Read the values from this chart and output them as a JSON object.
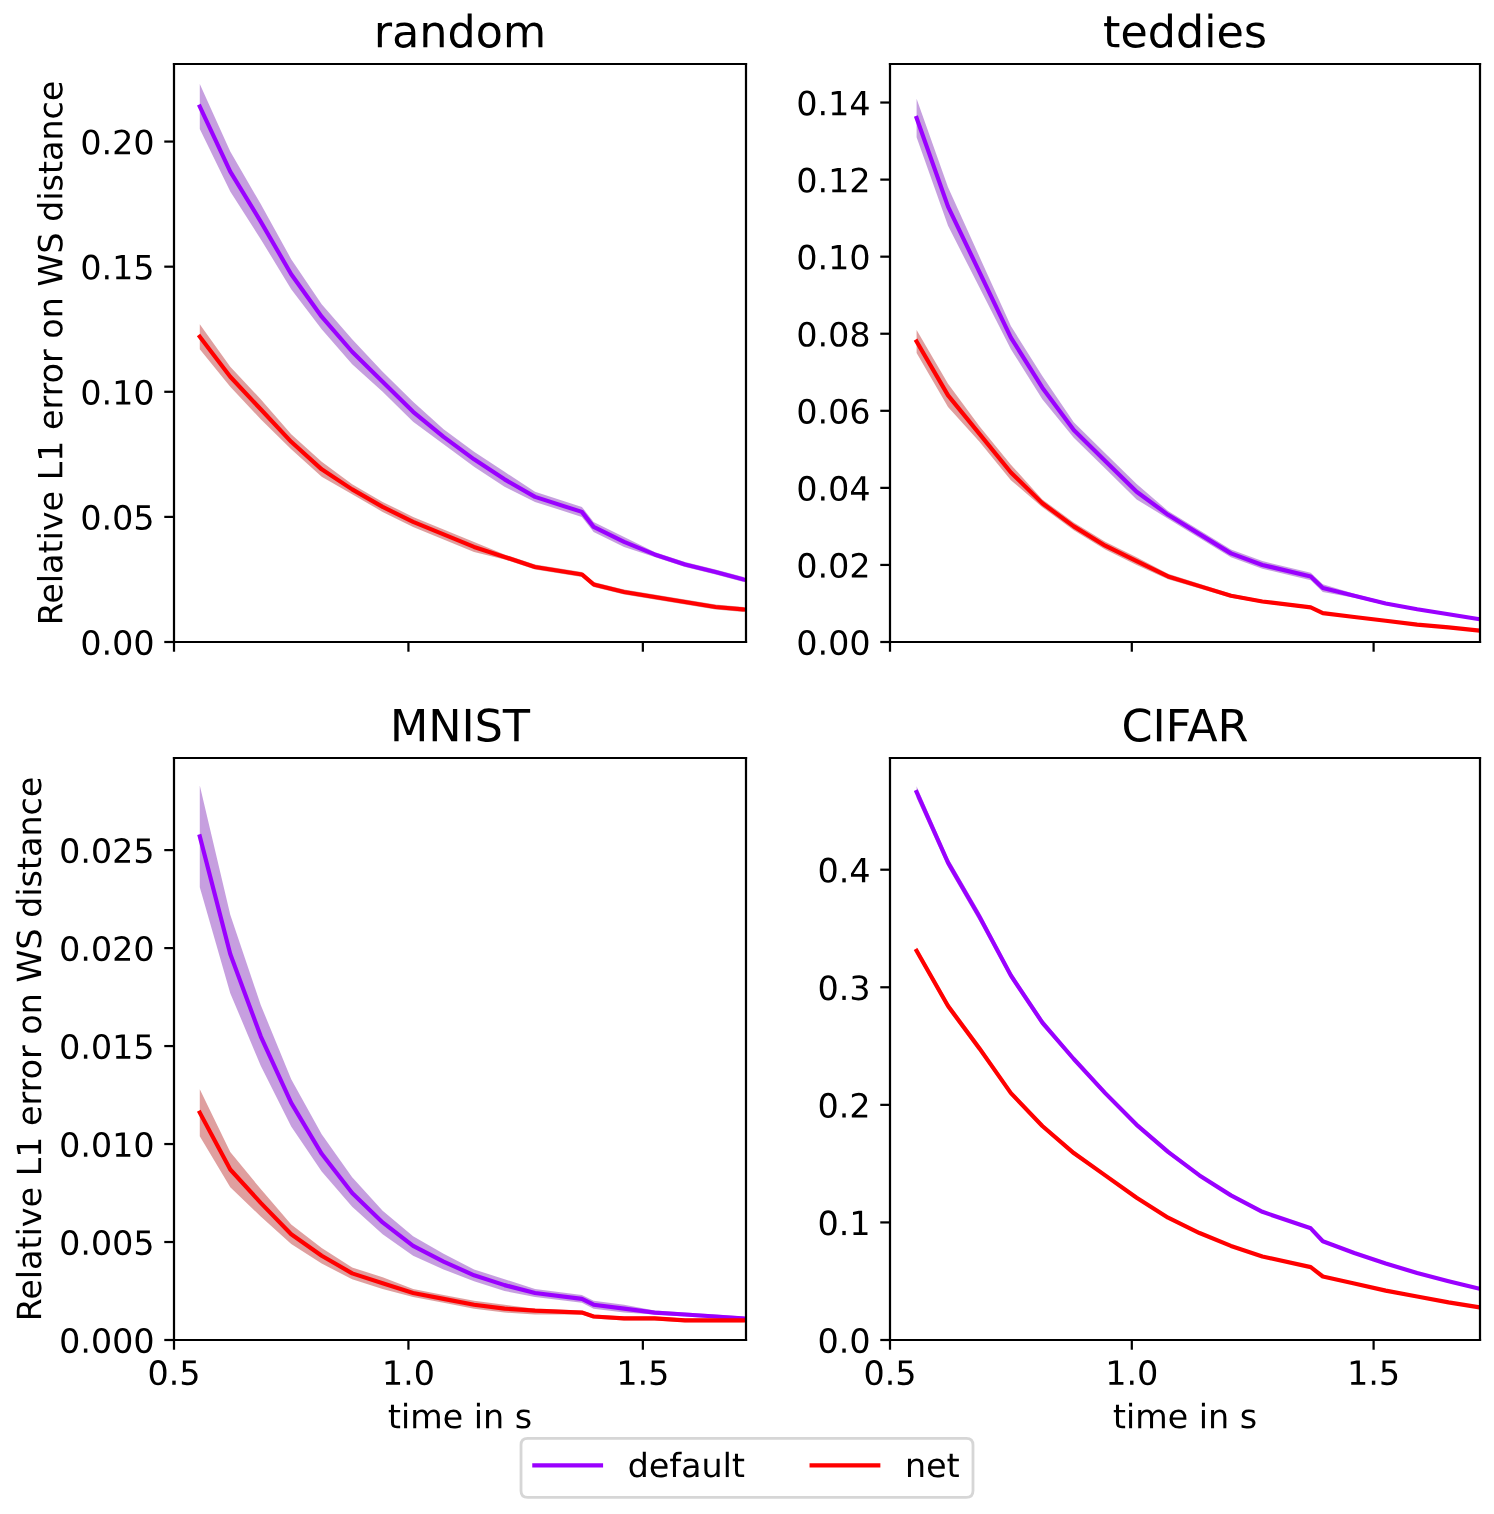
{
  "chart_data": [
    {
      "type": "line",
      "title": "random",
      "ylabel": "Relative L1 error on WS distance",
      "legend": "bottom",
      "xlim": [
        0.5,
        1.72
      ],
      "xticks": [
        {
          "value": 0.5,
          "label": null
        },
        {
          "value": 1,
          "label": null
        },
        {
          "value": 1.5,
          "label": null
        }
      ],
      "ylim": [
        0,
        0.231
      ],
      "yticks": [
        {
          "value": 0,
          "label": "0.00"
        },
        {
          "value": 0.05,
          "label": "0.05"
        },
        {
          "value": 0.1,
          "label": "0.10"
        },
        {
          "value": 0.15,
          "label": "0.15"
        },
        {
          "value": 0.2,
          "label": "0.20"
        }
      ],
      "tick_labels": "y",
      "grid": false,
      "x": [
        0.555,
        0.62,
        0.685,
        0.75,
        0.815,
        0.88,
        0.945,
        1.01,
        1.075,
        1.14,
        1.205,
        1.27,
        1.37,
        1.395,
        1.46,
        1.525,
        1.59,
        1.655,
        1.715
      ],
      "series": [
        {
          "name": "default",
          "color": "#9a00ff",
          "values": [
            0.214,
            0.188,
            0.168,
            0.147,
            0.13,
            0.116,
            0.104,
            0.092,
            0.082,
            0.073,
            0.065,
            0.058,
            0.052,
            0.046,
            0.04,
            0.035,
            0.031,
            0.028,
            0.025
          ],
          "lower": [
            0.205,
            0.18,
            0.161,
            0.141,
            0.125,
            0.111,
            0.1,
            0.088,
            0.079,
            0.07,
            0.062,
            0.056,
            0.05,
            0.044,
            0.038,
            0.034,
            0.03,
            0.027,
            0.024
          ],
          "upper": [
            0.223,
            0.196,
            0.175,
            0.153,
            0.135,
            0.121,
            0.108,
            0.096,
            0.085,
            0.076,
            0.068,
            0.06,
            0.054,
            0.048,
            0.042,
            0.036,
            0.032,
            0.029,
            0.026
          ]
        },
        {
          "name": "net",
          "color": "#ff0000",
          "values": [
            0.122,
            0.106,
            0.093,
            0.08,
            0.069,
            0.061,
            0.054,
            0.048,
            0.043,
            0.038,
            0.034,
            0.03,
            0.027,
            0.023,
            0.02,
            0.018,
            0.016,
            0.014,
            0.013
          ],
          "lower": [
            0.117,
            0.102,
            0.089,
            0.077,
            0.066,
            0.059,
            0.052,
            0.046,
            0.041,
            0.036,
            0.033,
            0.029,
            0.026,
            0.022,
            0.019,
            0.017,
            0.015,
            0.013,
            0.012
          ],
          "upper": [
            0.127,
            0.11,
            0.097,
            0.083,
            0.072,
            0.063,
            0.056,
            0.05,
            0.045,
            0.04,
            0.035,
            0.031,
            0.028,
            0.024,
            0.021,
            0.019,
            0.017,
            0.015,
            0.014
          ]
        }
      ]
    },
    {
      "type": "line",
      "title": "teddies",
      "legend": "bottom",
      "xlim": [
        0.5,
        1.72
      ],
      "xticks": [
        {
          "value": 0.5,
          "label": null
        },
        {
          "value": 1,
          "label": null
        },
        {
          "value": 1.5,
          "label": null
        }
      ],
      "ylim": [
        0,
        0.15
      ],
      "yticks": [
        {
          "value": 0,
          "label": "0.00"
        },
        {
          "value": 0.02,
          "label": "0.02"
        },
        {
          "value": 0.04,
          "label": "0.04"
        },
        {
          "value": 0.06,
          "label": "0.06"
        },
        {
          "value": 0.08,
          "label": "0.08"
        },
        {
          "value": 0.1,
          "label": "0.10"
        },
        {
          "value": 0.12,
          "label": "0.12"
        },
        {
          "value": 0.14,
          "label": "0.14"
        }
      ],
      "tick_labels": "y",
      "grid": false,
      "x": [
        0.555,
        0.62,
        0.685,
        0.75,
        0.815,
        0.88,
        0.945,
        1.01,
        1.075,
        1.14,
        1.205,
        1.27,
        1.37,
        1.395,
        1.46,
        1.525,
        1.59,
        1.655,
        1.715
      ],
      "series": [
        {
          "name": "default",
          "color": "#9a00ff",
          "values": [
            0.136,
            0.113,
            0.096,
            0.079,
            0.066,
            0.055,
            0.047,
            0.039,
            0.033,
            0.028,
            0.023,
            0.02,
            0.017,
            0.014,
            0.012,
            0.01,
            0.0085,
            0.0072,
            0.006
          ],
          "lower": [
            0.131,
            0.108,
            0.092,
            0.076,
            0.063,
            0.053,
            0.045,
            0.037,
            0.032,
            0.027,
            0.022,
            0.019,
            0.016,
            0.013,
            0.0115,
            0.0096,
            0.0082,
            0.0069,
            0.0058
          ],
          "upper": [
            0.141,
            0.118,
            0.1,
            0.082,
            0.069,
            0.057,
            0.049,
            0.041,
            0.034,
            0.029,
            0.024,
            0.021,
            0.018,
            0.015,
            0.0125,
            0.0104,
            0.0088,
            0.0075,
            0.0062
          ]
        },
        {
          "name": "net",
          "color": "#ff0000",
          "values": [
            0.078,
            0.064,
            0.054,
            0.044,
            0.036,
            0.03,
            0.025,
            0.021,
            0.017,
            0.0145,
            0.012,
            0.0105,
            0.009,
            0.0075,
            0.0065,
            0.0055,
            0.0045,
            0.0038,
            0.003
          ],
          "lower": [
            0.075,
            0.061,
            0.052,
            0.042,
            0.035,
            0.029,
            0.024,
            0.02,
            0.0163,
            0.0139,
            0.0115,
            0.0101,
            0.0086,
            0.0072,
            0.0062,
            0.0053,
            0.0043,
            0.0036,
            0.0029
          ],
          "upper": [
            0.081,
            0.067,
            0.056,
            0.046,
            0.037,
            0.031,
            0.026,
            0.022,
            0.0177,
            0.0151,
            0.0125,
            0.0109,
            0.0094,
            0.0078,
            0.0068,
            0.0057,
            0.0047,
            0.004,
            0.0031
          ]
        }
      ]
    },
    {
      "type": "line",
      "title": "MNIST",
      "xlabel": "time in s",
      "ylabel": "Relative L1 error on WS distance",
      "legend": "bottom",
      "xlim": [
        0.5,
        1.72
      ],
      "xticks": [
        {
          "value": 0.5,
          "label": "0.5"
        },
        {
          "value": 1,
          "label": "1.0"
        },
        {
          "value": 1.5,
          "label": "1.5"
        }
      ],
      "ylim": [
        0,
        0.0297
      ],
      "yticks": [
        {
          "value": 0,
          "label": "0.000"
        },
        {
          "value": 0.005,
          "label": "0.005"
        },
        {
          "value": 0.01,
          "label": "0.010"
        },
        {
          "value": 0.015,
          "label": "0.015"
        },
        {
          "value": 0.02,
          "label": "0.020"
        },
        {
          "value": 0.025,
          "label": "0.025"
        }
      ],
      "grid": false,
      "x": [
        0.555,
        0.62,
        0.685,
        0.75,
        0.815,
        0.88,
        0.945,
        1.01,
        1.075,
        1.14,
        1.205,
        1.27,
        1.37,
        1.395,
        1.46,
        1.525,
        1.59,
        1.655,
        1.715
      ],
      "series": [
        {
          "name": "default",
          "color": "#9a00ff",
          "values": [
            0.0257,
            0.0197,
            0.0155,
            0.0121,
            0.0095,
            0.0075,
            0.006,
            0.0048,
            0.004,
            0.0033,
            0.0028,
            0.0024,
            0.0021,
            0.0018,
            0.0016,
            0.0014,
            0.0013,
            0.0012,
            0.0011
          ],
          "lower": [
            0.0231,
            0.0177,
            0.014,
            0.0109,
            0.0086,
            0.0068,
            0.0054,
            0.0043,
            0.0036,
            0.003,
            0.0025,
            0.0022,
            0.0019,
            0.0016,
            0.0014,
            0.0013,
            0.0012,
            0.0011,
            0.001
          ],
          "upper": [
            0.0283,
            0.0217,
            0.0171,
            0.0133,
            0.0105,
            0.0083,
            0.0066,
            0.0053,
            0.0044,
            0.0036,
            0.0031,
            0.0026,
            0.0023,
            0.002,
            0.0018,
            0.0015,
            0.0014,
            0.0013,
            0.0012
          ]
        },
        {
          "name": "net",
          "color": "#ff0000",
          "values": [
            0.0116,
            0.0087,
            0.007,
            0.0054,
            0.0043,
            0.0034,
            0.0029,
            0.0024,
            0.0021,
            0.0018,
            0.0016,
            0.0015,
            0.0014,
            0.0012,
            0.0011,
            0.0011,
            0.001,
            0.001,
            0.001
          ],
          "lower": [
            0.0104,
            0.0078,
            0.0063,
            0.0049,
            0.0039,
            0.0031,
            0.0026,
            0.0022,
            0.0019,
            0.0016,
            0.0014,
            0.0013,
            0.0013,
            0.0011,
            0.001,
            0.001,
            0.0009,
            0.0009,
            0.0009
          ],
          "upper": [
            0.0128,
            0.0096,
            0.0077,
            0.0059,
            0.0047,
            0.0037,
            0.0032,
            0.0026,
            0.0023,
            0.002,
            0.0018,
            0.0016,
            0.0015,
            0.0013,
            0.0012,
            0.0012,
            0.0011,
            0.0011,
            0.0011
          ]
        }
      ]
    },
    {
      "type": "line",
      "title": "CIFAR",
      "xlabel": "time in s",
      "xlim": [
        0.5,
        1.72
      ],
      "xticks": [
        {
          "value": 0.5,
          "label": "0.5"
        },
        {
          "value": 1,
          "label": "1.0"
        },
        {
          "value": 1.5,
          "label": "1.5"
        }
      ],
      "ylim": [
        0,
        0.495
      ],
      "yticks": [
        {
          "value": 0,
          "label": "0.0"
        },
        0.1,
        0.2,
        0.3,
        0.4
      ],
      "grid": false,
      "legend": "bottom",
      "x": [
        0.555,
        0.62,
        0.685,
        0.75,
        0.815,
        0.88,
        0.945,
        1.01,
        1.075,
        1.14,
        1.205,
        1.27,
        1.37,
        1.395,
        1.46,
        1.525,
        1.59,
        1.655,
        1.715
      ],
      "series": [
        {
          "name": "default",
          "color": "#9a00ff",
          "values": [
            0.466,
            0.406,
            0.36,
            0.31,
            0.27,
            0.239,
            0.21,
            0.183,
            0.16,
            0.14,
            0.123,
            0.109,
            0.095,
            0.084,
            0.074,
            0.065,
            0.057,
            0.05,
            0.044
          ],
          "lower": [
            0.461,
            0.402,
            0.356,
            0.307,
            0.267,
            0.237,
            0.208,
            0.181,
            0.158,
            0.139,
            0.122,
            0.108,
            0.094,
            0.083,
            0.073,
            0.064,
            0.056,
            0.049,
            0.043
          ],
          "upper": [
            0.471,
            0.41,
            0.364,
            0.313,
            0.273,
            0.241,
            0.212,
            0.185,
            0.162,
            0.141,
            0.124,
            0.11,
            0.096,
            0.085,
            0.075,
            0.066,
            0.058,
            0.051,
            0.045
          ]
        },
        {
          "name": "net",
          "color": "#ff0000",
          "values": [
            0.331,
            0.284,
            0.248,
            0.21,
            0.182,
            0.159,
            0.14,
            0.121,
            0.104,
            0.091,
            0.08,
            0.071,
            0.062,
            0.054,
            0.048,
            0.042,
            0.037,
            0.032,
            0.028
          ],
          "lower": [
            0.328,
            0.281,
            0.245,
            0.208,
            0.18,
            0.157,
            0.139,
            0.12,
            0.103,
            0.09,
            0.079,
            0.07,
            0.062,
            0.053,
            0.047,
            0.041,
            0.036,
            0.031,
            0.027
          ],
          "upper": [
            0.334,
            0.287,
            0.251,
            0.212,
            0.184,
            0.161,
            0.141,
            0.122,
            0.105,
            0.092,
            0.081,
            0.072,
            0.063,
            0.055,
            0.049,
            0.043,
            0.038,
            0.033,
            0.029
          ]
        }
      ]
    }
  ]
}
